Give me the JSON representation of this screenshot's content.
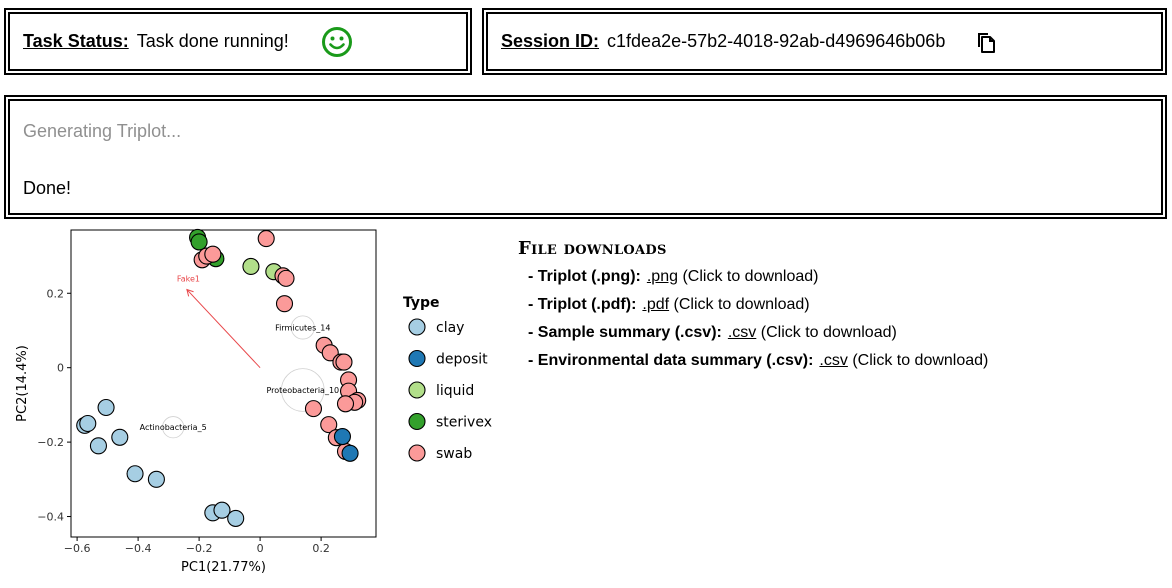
{
  "status": {
    "label": "Task Status:",
    "text": "Task done running!",
    "icon": "smiley-icon",
    "icon_color": "#1a9a1a"
  },
  "session": {
    "label": "Session ID:",
    "id": "c1fdea2e-57b2-4018-92ab-d4969646b06b",
    "icon": "copy-icon"
  },
  "log": {
    "line1": "Generating Triplot...",
    "line2": "Done!"
  },
  "plot": {
    "xlabel": "PC1(21.77%)",
    "ylabel": "PC2(14.4%)",
    "xlim": [
      -0.62,
      0.38
    ],
    "ylim": [
      -0.455,
      0.37
    ],
    "xticks": [
      {
        "v": -0.6,
        "t": "−0.6"
      },
      {
        "v": -0.4,
        "t": "−0.4"
      },
      {
        "v": -0.2,
        "t": "−0.2"
      },
      {
        "v": 0,
        "t": "0"
      },
      {
        "v": 0.2,
        "t": "0.2"
      }
    ],
    "yticks": [
      {
        "v": 0.2,
        "t": "0.2"
      },
      {
        "v": 0,
        "t": "0"
      },
      {
        "v": -0.2,
        "t": "−0.2"
      },
      {
        "v": -0.4,
        "t": "−0.4"
      }
    ],
    "legend_title": "Type",
    "types": [
      {
        "name": "clay",
        "color": "#a6cee3"
      },
      {
        "name": "deposit",
        "color": "#1f78b4"
      },
      {
        "name": "liquid",
        "color": "#b2df8a"
      },
      {
        "name": "sterivex",
        "color": "#33a02c"
      },
      {
        "name": "swab",
        "color": "#fb9a99"
      }
    ],
    "points": [
      {
        "x": -0.575,
        "y": -0.155,
        "type": "clay"
      },
      {
        "x": -0.565,
        "y": -0.15,
        "type": "clay"
      },
      {
        "x": -0.53,
        "y": -0.21,
        "type": "clay"
      },
      {
        "x": -0.505,
        "y": -0.107,
        "type": "clay"
      },
      {
        "x": -0.46,
        "y": -0.187,
        "type": "clay"
      },
      {
        "x": -0.41,
        "y": -0.285,
        "type": "clay"
      },
      {
        "x": -0.34,
        "y": -0.3,
        "type": "clay"
      },
      {
        "x": -0.155,
        "y": -0.39,
        "type": "clay"
      },
      {
        "x": -0.125,
        "y": -0.383,
        "type": "clay"
      },
      {
        "x": -0.08,
        "y": -0.405,
        "type": "clay"
      },
      {
        "x": -0.205,
        "y": 0.35,
        "type": "sterivex"
      },
      {
        "x": -0.2,
        "y": 0.338,
        "type": "sterivex"
      },
      {
        "x": -0.145,
        "y": 0.293,
        "type": "sterivex"
      },
      {
        "x": -0.03,
        "y": 0.272,
        "type": "liquid"
      },
      {
        "x": 0.045,
        "y": 0.258,
        "type": "liquid"
      },
      {
        "x": 0.02,
        "y": 0.347,
        "type": "swab"
      },
      {
        "x": -0.19,
        "y": 0.29,
        "type": "swab"
      },
      {
        "x": -0.175,
        "y": 0.3,
        "type": "swab"
      },
      {
        "x": -0.155,
        "y": 0.305,
        "type": "swab"
      },
      {
        "x": 0.075,
        "y": 0.247,
        "type": "swab"
      },
      {
        "x": 0.085,
        "y": 0.24,
        "type": "swab"
      },
      {
        "x": 0.08,
        "y": 0.172,
        "type": "swab"
      },
      {
        "x": 0.21,
        "y": 0.06,
        "type": "swab"
      },
      {
        "x": 0.23,
        "y": 0.04,
        "type": "swab"
      },
      {
        "x": 0.265,
        "y": 0.015,
        "type": "swab"
      },
      {
        "x": 0.275,
        "y": 0.015,
        "type": "swab"
      },
      {
        "x": 0.29,
        "y": -0.033,
        "type": "swab"
      },
      {
        "x": 0.29,
        "y": -0.063,
        "type": "swab"
      },
      {
        "x": 0.32,
        "y": -0.088,
        "type": "swab"
      },
      {
        "x": 0.31,
        "y": -0.093,
        "type": "swab"
      },
      {
        "x": 0.28,
        "y": -0.097,
        "type": "swab"
      },
      {
        "x": 0.175,
        "y": -0.11,
        "type": "swab"
      },
      {
        "x": 0.225,
        "y": -0.153,
        "type": "swab"
      },
      {
        "x": 0.25,
        "y": -0.188,
        "type": "swab"
      },
      {
        "x": 0.28,
        "y": -0.225,
        "type": "swab"
      },
      {
        "x": 0.27,
        "y": -0.185,
        "type": "deposit"
      },
      {
        "x": 0.295,
        "y": -0.23,
        "type": "deposit"
      }
    ],
    "taxa": [
      {
        "label": "Firmicutes_14",
        "x": 0.14,
        "y": 0.108,
        "r": 0.038
      },
      {
        "label": "Proteobacteria_10",
        "x": 0.14,
        "y": -0.06,
        "r": 0.07
      },
      {
        "label": "Actinobacteria_5",
        "x": -0.285,
        "y": -0.16,
        "r": 0.035
      }
    ],
    "arrow": {
      "label": "Fake1",
      "x0": 0,
      "y0": 0,
      "x1": -0.24,
      "y1": 0.21,
      "color": "#e8474a"
    }
  },
  "downloads": {
    "title": "File downloads",
    "items": [
      {
        "name": "Triplot (.png):",
        "link": ".png",
        "hint": "(Click to download)"
      },
      {
        "name": "Triplot (.pdf):",
        "link": ".pdf",
        "hint": "(Click to download)"
      },
      {
        "name": "Sample summary (.csv):",
        "link": ".csv",
        "hint": "(Click to download)"
      },
      {
        "name": "Environmental data summary (.csv):",
        "link": ".csv",
        "hint": "(Click to download)"
      }
    ]
  }
}
